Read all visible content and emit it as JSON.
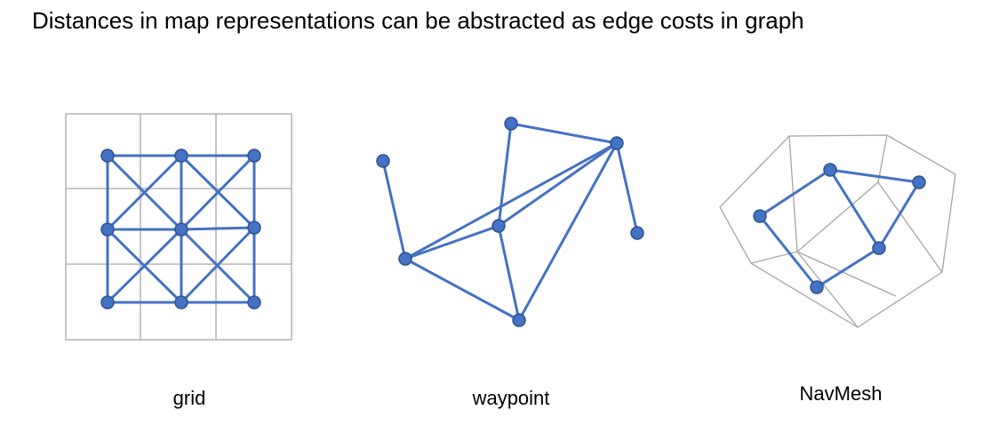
{
  "slide": {
    "title": "Distances in map representations can be abstracted as edge costs in graph"
  },
  "colors": {
    "node": "#4472C4",
    "edge": "#4472C4",
    "cell": "#A6A6A6"
  },
  "panels": [
    {
      "id": "grid",
      "label": "grid"
    },
    {
      "id": "waypoint",
      "label": "waypoint"
    },
    {
      "id": "navmesh",
      "label": "NavMesh"
    }
  ]
}
